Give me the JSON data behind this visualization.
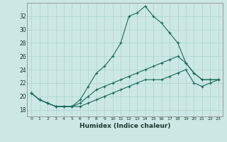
{
  "xlabel": "Humidex (Indice chaleur)",
  "bg_color": "#cce8e4",
  "grid_color": "#aad4d0",
  "line_color": "#1a6b5a",
  "x_ticks": [
    0,
    1,
    2,
    3,
    4,
    5,
    6,
    7,
    8,
    9,
    10,
    11,
    12,
    13,
    14,
    15,
    16,
    17,
    18,
    19,
    20,
    21,
    22,
    23
  ],
  "y_ticks": [
    18,
    20,
    22,
    24,
    26,
    28,
    30,
    32
  ],
  "ylim": [
    17.0,
    34.0
  ],
  "xlim": [
    -0.5,
    23.5
  ],
  "line1_y": [
    20.5,
    19.5,
    19.0,
    18.5,
    18.5,
    18.5,
    19.5,
    21.5,
    23.5,
    24.5,
    26.0,
    28.0,
    32.0,
    32.5,
    33.5,
    32.0,
    31.0,
    29.5,
    28.0,
    25.0,
    23.5,
    22.5,
    22.5,
    22.5
  ],
  "line2_y": [
    20.5,
    19.5,
    19.0,
    18.5,
    18.5,
    18.5,
    19.0,
    20.0,
    21.0,
    21.5,
    22.0,
    22.5,
    23.0,
    23.5,
    24.0,
    24.5,
    25.0,
    25.5,
    26.0,
    25.0,
    23.5,
    22.5,
    22.5,
    22.5
  ],
  "line3_y": [
    20.5,
    19.5,
    19.0,
    18.5,
    18.5,
    18.5,
    18.5,
    19.0,
    19.5,
    20.0,
    20.5,
    21.0,
    21.5,
    22.0,
    22.5,
    22.5,
    22.5,
    23.0,
    23.5,
    24.0,
    22.0,
    21.5,
    22.0,
    22.5
  ]
}
